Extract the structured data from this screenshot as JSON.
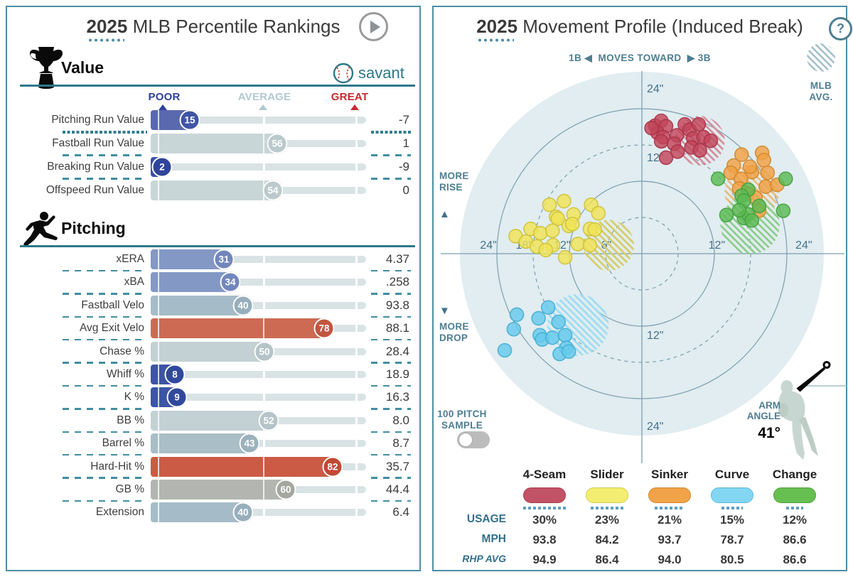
{
  "left": {
    "title_year": "2025",
    "title_rest": " MLB Percentile Rankings",
    "brand": "savant",
    "scale": {
      "poor": "POOR",
      "average": "AVERAGE",
      "great": "GREAT"
    },
    "scale_colors": {
      "poor": "#2d3f9b",
      "average": "#b2c8d2",
      "great": "#c9282d"
    }
  },
  "right": {
    "title_year": "2025",
    "title_rest": " Movement Profile (Induced Break)",
    "help": "?",
    "subtitle_1b": "1B",
    "arrow_left": "◀",
    "subtitle_mid": "MOVES TOWARD",
    "arrow_right": "▶",
    "subtitle_3b": "3B",
    "mlb_avg_label": "MLB AVG.",
    "more_rise_1": "MORE",
    "more_rise_2": "RISE",
    "rise_tri": "▲",
    "drop_tri": "▼",
    "more_drop_1": "MORE",
    "more_drop_2": "DROP",
    "sample_1": "100 PITCH",
    "sample_2": "SAMPLE",
    "arm_1": "ARM",
    "arm_2": "ANGLE",
    "arm_angle": "41°",
    "table_row_labels": [
      "USAGE",
      "MPH",
      "RHP AVG"
    ]
  },
  "chart_data": [
    {
      "type": "bar",
      "title": "2025 MLB Percentile Rankings",
      "scale": [
        "POOR",
        "AVERAGE",
        "GREAT"
      ],
      "sections": [
        {
          "name": "Value",
          "icon": "trophy-icon",
          "rows": [
            {
              "label": "Pitching Run Value",
              "percentile": 15,
              "value": "-7",
              "fill": "#5a68ae",
              "circle": "#4055a4",
              "sep": "dotted"
            },
            {
              "label": "Fastball Run Value",
              "percentile": 56,
              "value": "1",
              "fill": "#c9d6d8",
              "circle": "#bccacd",
              "sep": "dashed"
            },
            {
              "label": "Breaking Run Value",
              "percentile": 2,
              "value": "-9",
              "fill": "#3c51a2",
              "circle": "#2f459b",
              "sep": "dashed"
            },
            {
              "label": "Offspeed Run Value",
              "percentile": 54,
              "value": "0",
              "fill": "#c9d6d8",
              "circle": "#bccacd",
              "sep": "none"
            }
          ]
        },
        {
          "name": "Pitching",
          "icon": "pitcher-icon",
          "rows": [
            {
              "label": "xERA",
              "percentile": 31,
              "value": "4.37",
              "fill": "#8398c5",
              "circle": "#7287bb",
              "sep": "dashed"
            },
            {
              "label": "xBA",
              "percentile": 34,
              "value": ".258",
              "fill": "#8398c5",
              "circle": "#7287bb",
              "sep": "dashed"
            },
            {
              "label": "Fastball Velo",
              "percentile": 40,
              "value": "93.8",
              "fill": "#a5bcc8",
              "circle": "#97afbc",
              "sep": "dashed"
            },
            {
              "label": "Avg Exit Velo",
              "percentile": 78,
              "value": "88.1",
              "fill": "#cc6a54",
              "circle": "#c25640",
              "sep": "dashed"
            },
            {
              "label": "Chase %",
              "percentile": 50,
              "value": "28.4",
              "fill": "#c3d1d4",
              "circle": "#b5c4c8",
              "sep": "dashed"
            },
            {
              "label": "Whiff %",
              "percentile": 8,
              "value": "18.9",
              "fill": "#3c55a4",
              "circle": "#30499c",
              "sep": "dashed"
            },
            {
              "label": "K %",
              "percentile": 9,
              "value": "16.3",
              "fill": "#3c55a4",
              "circle": "#30499c",
              "sep": "dashed"
            },
            {
              "label": "BB %",
              "percentile": 52,
              "value": "8.0",
              "fill": "#c3d1d4",
              "circle": "#b5c4c8",
              "sep": "dashed"
            },
            {
              "label": "Barrel %",
              "percentile": 43,
              "value": "8.7",
              "fill": "#a9bec6",
              "circle": "#9bb2bd",
              "sep": "dashed"
            },
            {
              "label": "Hard-Hit %",
              "percentile": 82,
              "value": "35.7",
              "fill": "#cb5b45",
              "circle": "#c04a33",
              "sep": "dashed"
            },
            {
              "label": "GB %",
              "percentile": 60,
              "value": "44.4",
              "fill": "#b3b6b0",
              "circle": "#a4a7a0",
              "sep": "dashed"
            },
            {
              "label": "Extension",
              "percentile": 40,
              "value": "6.4",
              "fill": "#a5bcc8",
              "circle": "#97afbc",
              "sep": "none"
            }
          ]
        }
      ]
    },
    {
      "type": "scatter",
      "title": "2025 Movement Profile (Induced Break)",
      "units": "inches of induced break",
      "x_axis": "1B ◀ MOVES TOWARD ▶ 3B",
      "rings_in": [
        6,
        12,
        18,
        24
      ],
      "h_tick_labels": [
        {
          "text": "24\"",
          "x": -25.4
        },
        {
          "text": "18\"",
          "x": -19.5
        },
        {
          "text": "12\"",
          "x": -13.2
        },
        {
          "text": "6\"",
          "x": -5.9
        },
        {
          "text": "12\"",
          "x": 12.4
        },
        {
          "text": "24\"",
          "x": 26.8
        }
      ],
      "v_tick_labels": [
        {
          "text": "24\"",
          "y": 27.3
        },
        {
          "text": "12\"",
          "y": 15.9
        },
        {
          "text": "12\"",
          "y": -13.5
        },
        {
          "text": "24\"",
          "y": -28.6
        }
      ],
      "series": [
        {
          "name": "4-Seam",
          "usage": "30%",
          "mph": "93.8",
          "rhp_avg": "94.9",
          "color": "#c2455a",
          "stroke": "#a93349",
          "hatch": "#d48e9b",
          "pill": "#c25265",
          "pill_border": "#a93d50",
          "mlb_avg": {
            "x": 9.6,
            "y": 18.7,
            "r": 4.1
          },
          "points": [
            [
              2.2,
              21.2
            ],
            [
              3.2,
              22.0
            ],
            [
              4.0,
              21.1
            ],
            [
              2.6,
              20.0
            ],
            [
              3.5,
              19.3
            ],
            [
              5.8,
              19.6
            ],
            [
              5.3,
              18.2
            ],
            [
              7.1,
              21.4
            ],
            [
              7.9,
              20.5
            ],
            [
              8.5,
              19.1
            ],
            [
              9.4,
              21.4
            ],
            [
              10.2,
              19.3
            ],
            [
              11.4,
              18.7
            ],
            [
              8.2,
              17.6
            ],
            [
              9.6,
              17.1
            ],
            [
              5.9,
              16.9
            ],
            [
              4.0,
              15.9
            ],
            [
              3.2,
              18.6
            ],
            [
              1.6,
              20.8
            ]
          ]
        },
        {
          "name": "Slider",
          "usage": "23%",
          "mph": "84.2",
          "rhp_avg": "86.4",
          "color": "#f0e356",
          "stroke": "#cec23a",
          "hatch": "#d6cc6a",
          "pill": "#f3ee71",
          "pill_border": "#d3cc4e",
          "mlb_avg": {
            "x": -5.5,
            "y": 1.4,
            "r": 4.2
          },
          "points": [
            [
              -15.3,
              8.1
            ],
            [
              -12.9,
              8.7
            ],
            [
              -8.4,
              8.1
            ],
            [
              -7.2,
              6.7
            ],
            [
              -11.3,
              6.5
            ],
            [
              -14.2,
              6.1
            ],
            [
              -13.9,
              5.8
            ],
            [
              -12.1,
              4.6
            ],
            [
              -11.5,
              4.9
            ],
            [
              -18.4,
              4.1
            ],
            [
              -16.8,
              3.4
            ],
            [
              -14.8,
              3.8
            ],
            [
              -8.6,
              4.1
            ],
            [
              -7.8,
              4.0
            ],
            [
              -14.7,
              1.4
            ],
            [
              -10.6,
              1.6
            ],
            [
              -8.6,
              1.4
            ],
            [
              -12.7,
              -0.6
            ],
            [
              -20.9,
              2.9
            ],
            [
              -19.2,
              2.0
            ],
            [
              -17.4,
              1.2
            ],
            [
              -15.9,
              0.6
            ]
          ]
        },
        {
          "name": "Sinker",
          "usage": "21%",
          "mph": "93.7",
          "rhp_avg": "94.0",
          "color": "#f0a144",
          "stroke": "#d2872c",
          "hatch": "#ecb979",
          "pill": "#f0a349",
          "pill_border": "#d18631",
          "mlb_avg": {
            "x": 18.2,
            "y": 10.2,
            "r": 4.5
          },
          "points": [
            [
              16.5,
              16.4
            ],
            [
              19.9,
              16.7
            ],
            [
              20.2,
              15.5
            ],
            [
              15.2,
              14.6
            ],
            [
              14.7,
              13.4
            ],
            [
              18.2,
              13.5
            ],
            [
              20.8,
              13.4
            ],
            [
              16.4,
              12.4
            ],
            [
              17.9,
              14.4
            ],
            [
              20.5,
              11.1
            ],
            [
              22.4,
              11.4
            ],
            [
              19.4,
              7.1
            ],
            [
              16.1,
              10.8
            ],
            [
              17.5,
              10.0
            ],
            [
              18.8,
              9.3
            ]
          ]
        },
        {
          "name": "Curve",
          "usage": "15%",
          "mph": "78.7",
          "rhp_avg": "80.5",
          "color": "#67c9ec",
          "stroke": "#45add2",
          "hatch": "#9ddcf2",
          "pill": "#82d6f2",
          "pill_border": "#5cb8d8",
          "mlb_avg": {
            "x": -10.6,
            "y": -11.8,
            "r": 5.1
          },
          "points": [
            [
              -20.7,
              -10.1
            ],
            [
              -21.2,
              -12.5
            ],
            [
              -22.7,
              -16.0
            ],
            [
              -17.1,
              -10.7
            ],
            [
              -15.5,
              -8.9
            ],
            [
              -13.8,
              -11.3
            ],
            [
              -16.9,
              -13.5
            ],
            [
              -16.5,
              -14.2
            ],
            [
              -14.8,
              -13.9
            ],
            [
              -12.7,
              -13.5
            ],
            [
              -12.5,
              -15.6
            ],
            [
              -13.6,
              -16.6
            ],
            [
              -12.1,
              -16.2
            ]
          ]
        },
        {
          "name": "Change",
          "usage": "12%",
          "mph": "86.6",
          "rhp_avg": "86.6",
          "color": "#5bb953",
          "stroke": "#42a13e",
          "hatch": "#8ccc8c",
          "pill": "#67bf52",
          "pill_border": "#4da33c",
          "mlb_avg": {
            "x": 17.9,
            "y": 4.8,
            "r": 4.9
          },
          "points": [
            [
              12.6,
              12.4
            ],
            [
              23.8,
              12.4
            ],
            [
              17.6,
              10.6
            ],
            [
              16.5,
              9.6
            ],
            [
              16.9,
              8.8
            ],
            [
              19.4,
              7.9
            ],
            [
              14.0,
              6.4
            ],
            [
              16.9,
              5.9
            ],
            [
              17.6,
              6.5
            ],
            [
              23.4,
              7.1
            ],
            [
              16.1,
              7.2
            ],
            [
              18.2,
              5.5
            ]
          ]
        }
      ]
    }
  ]
}
